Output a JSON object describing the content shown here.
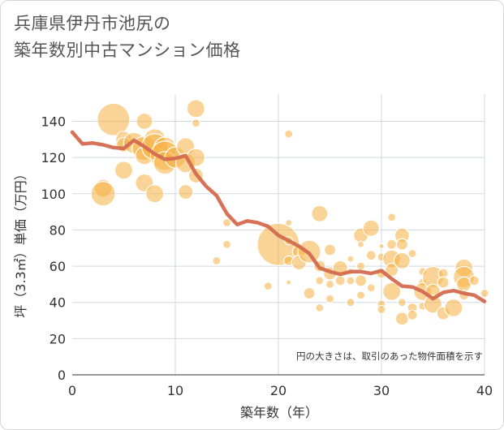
{
  "title_lines": [
    "兵庫県伊丹市池尻の",
    "築年数別中古マンション価格"
  ],
  "colors": {
    "bubble": "#F5B041",
    "line": "#D46A4F",
    "grid": "#d0d8e0",
    "axis": "#333333"
  },
  "chart_data": {
    "type": "scatter",
    "title": "兵庫県伊丹市池尻の築年数別中古マンション価格",
    "xlabel": "築年数（年）",
    "ylabel": "坪（3.3㎡）単価（万円）",
    "xlim": [
      0,
      40
    ],
    "ylim": [
      0,
      155
    ],
    "xticks": [
      0,
      10,
      20,
      30,
      40
    ],
    "yticks": [
      0,
      20,
      40,
      60,
      80,
      100,
      120,
      140
    ],
    "grid": true,
    "annotation": "円の大きさは、取引のあった物件面積を示す",
    "bubbles": [
      {
        "x": 3,
        "y": 103,
        "r": 11
      },
      {
        "x": 3,
        "y": 100,
        "r": 15
      },
      {
        "x": 4,
        "y": 141,
        "r": 20
      },
      {
        "x": 5,
        "y": 130,
        "r": 10
      },
      {
        "x": 5,
        "y": 127,
        "r": 9
      },
      {
        "x": 5,
        "y": 113,
        "r": 11
      },
      {
        "x": 6,
        "y": 128,
        "r": 13
      },
      {
        "x": 7,
        "y": 140,
        "r": 10
      },
      {
        "x": 7,
        "y": 125,
        "r": 15
      },
      {
        "x": 7,
        "y": 121,
        "r": 11
      },
      {
        "x": 7,
        "y": 106,
        "r": 11
      },
      {
        "x": 8,
        "y": 130,
        "r": 13
      },
      {
        "x": 8,
        "y": 126,
        "r": 16
      },
      {
        "x": 8,
        "y": 100,
        "r": 11
      },
      {
        "x": 9,
        "y": 125,
        "r": 14
      },
      {
        "x": 9,
        "y": 121,
        "r": 18
      },
      {
        "x": 9,
        "y": 117,
        "r": 14
      },
      {
        "x": 10,
        "y": 120,
        "r": 13
      },
      {
        "x": 11,
        "y": 126,
        "r": 11
      },
      {
        "x": 11,
        "y": 117,
        "r": 12
      },
      {
        "x": 11,
        "y": 101,
        "r": 9
      },
      {
        "x": 12,
        "y": 147,
        "r": 11
      },
      {
        "x": 12,
        "y": 139,
        "r": 5
      },
      {
        "x": 12,
        "y": 120,
        "r": 11
      },
      {
        "x": 12,
        "y": 110,
        "r": 9
      },
      {
        "x": 14,
        "y": 63,
        "r": 5
      },
      {
        "x": 15,
        "y": 84,
        "r": 5
      },
      {
        "x": 15,
        "y": 72,
        "r": 5
      },
      {
        "x": 19,
        "y": 49,
        "r": 5
      },
      {
        "x": 20,
        "y": 72,
        "r": 26
      },
      {
        "x": 21,
        "y": 133,
        "r": 5
      },
      {
        "x": 21,
        "y": 84,
        "r": 4
      },
      {
        "x": 21,
        "y": 74,
        "r": 5
      },
      {
        "x": 21,
        "y": 63,
        "r": 6
      },
      {
        "x": 21,
        "y": 51,
        "r": 3
      },
      {
        "x": 22,
        "y": 68,
        "r": 8
      },
      {
        "x": 22,
        "y": 62,
        "r": 9
      },
      {
        "x": 23,
        "y": 68,
        "r": 14
      },
      {
        "x": 23,
        "y": 45,
        "r": 7
      },
      {
        "x": 24,
        "y": 89,
        "r": 10
      },
      {
        "x": 24,
        "y": 60,
        "r": 7
      },
      {
        "x": 24,
        "y": 52,
        "r": 5
      },
      {
        "x": 24,
        "y": 37,
        "r": 5
      },
      {
        "x": 25,
        "y": 69,
        "r": 7
      },
      {
        "x": 25,
        "y": 56,
        "r": 8
      },
      {
        "x": 25,
        "y": 50,
        "r": 5
      },
      {
        "x": 25,
        "y": 42,
        "r": 5
      },
      {
        "x": 26,
        "y": 59,
        "r": 9
      },
      {
        "x": 26,
        "y": 52,
        "r": 6
      },
      {
        "x": 27,
        "y": 64,
        "r": 4
      },
      {
        "x": 27,
        "y": 57,
        "r": 4
      },
      {
        "x": 27,
        "y": 52,
        "r": 5
      },
      {
        "x": 27,
        "y": 40,
        "r": 5
      },
      {
        "x": 28,
        "y": 77,
        "r": 9
      },
      {
        "x": 28,
        "y": 72,
        "r": 4
      },
      {
        "x": 28,
        "y": 60,
        "r": 5
      },
      {
        "x": 28,
        "y": 52,
        "r": 7
      },
      {
        "x": 28,
        "y": 44,
        "r": 5
      },
      {
        "x": 29,
        "y": 81,
        "r": 10
      },
      {
        "x": 29,
        "y": 66,
        "r": 6
      },
      {
        "x": 29,
        "y": 48,
        "r": 5
      },
      {
        "x": 30,
        "y": 71,
        "r": 3
      },
      {
        "x": 30,
        "y": 65,
        "r": 5
      },
      {
        "x": 30,
        "y": 56,
        "r": 6
      },
      {
        "x": 30,
        "y": 39,
        "r": 5
      },
      {
        "x": 30,
        "y": 36,
        "r": 5
      },
      {
        "x": 31,
        "y": 87,
        "r": 5
      },
      {
        "x": 31,
        "y": 72,
        "r": 6
      },
      {
        "x": 31,
        "y": 64,
        "r": 11
      },
      {
        "x": 31,
        "y": 58,
        "r": 8
      },
      {
        "x": 31,
        "y": 46,
        "r": 11
      },
      {
        "x": 32,
        "y": 77,
        "r": 9
      },
      {
        "x": 32,
        "y": 72,
        "r": 7
      },
      {
        "x": 32,
        "y": 63,
        "r": 10
      },
      {
        "x": 32,
        "y": 40,
        "r": 5
      },
      {
        "x": 32,
        "y": 31,
        "r": 8
      },
      {
        "x": 33,
        "y": 67,
        "r": 5
      },
      {
        "x": 33,
        "y": 37,
        "r": 6
      },
      {
        "x": 33,
        "y": 33,
        "r": 6
      },
      {
        "x": 34,
        "y": 57,
        "r": 5
      },
      {
        "x": 34,
        "y": 51,
        "r": 5
      },
      {
        "x": 34,
        "y": 46,
        "r": 11
      },
      {
        "x": 34,
        "y": 38,
        "r": 5
      },
      {
        "x": 35,
        "y": 54,
        "r": 13
      },
      {
        "x": 35,
        "y": 46,
        "r": 9
      },
      {
        "x": 35,
        "y": 39,
        "r": 11
      },
      {
        "x": 36,
        "y": 56,
        "r": 6
      },
      {
        "x": 36,
        "y": 51,
        "r": 7
      },
      {
        "x": 36,
        "y": 34,
        "r": 8
      },
      {
        "x": 37,
        "y": 37,
        "r": 11
      },
      {
        "x": 38,
        "y": 59,
        "r": 11
      },
      {
        "x": 38,
        "y": 54,
        "r": 13
      },
      {
        "x": 38,
        "y": 50,
        "r": 9
      },
      {
        "x": 38,
        "y": 44,
        "r": 6
      },
      {
        "x": 39,
        "y": 52,
        "r": 6
      },
      {
        "x": 40,
        "y": 45,
        "r": 5
      }
    ],
    "series": [
      {
        "x": [
          0,
          1,
          2,
          3,
          4,
          5,
          6,
          7,
          8,
          9,
          10,
          11,
          12,
          13,
          14,
          15,
          16,
          17,
          18,
          19,
          20,
          21,
          22,
          23,
          24,
          25,
          26,
          27,
          28,
          29,
          30,
          31,
          32,
          33,
          34,
          35,
          36,
          37,
          38,
          39,
          40
        ],
        "values": [
          134,
          127.5,
          128,
          127,
          125.5,
          125,
          129.5,
          126,
          122,
          119,
          119.5,
          121,
          111,
          104,
          99,
          89,
          83,
          85,
          84,
          82,
          77,
          74,
          71,
          67,
          59,
          57,
          55.5,
          57,
          57,
          56,
          57.5,
          53,
          49,
          48.5,
          46,
          42,
          45.5,
          46.5,
          45,
          44,
          40.5
        ]
      }
    ]
  }
}
